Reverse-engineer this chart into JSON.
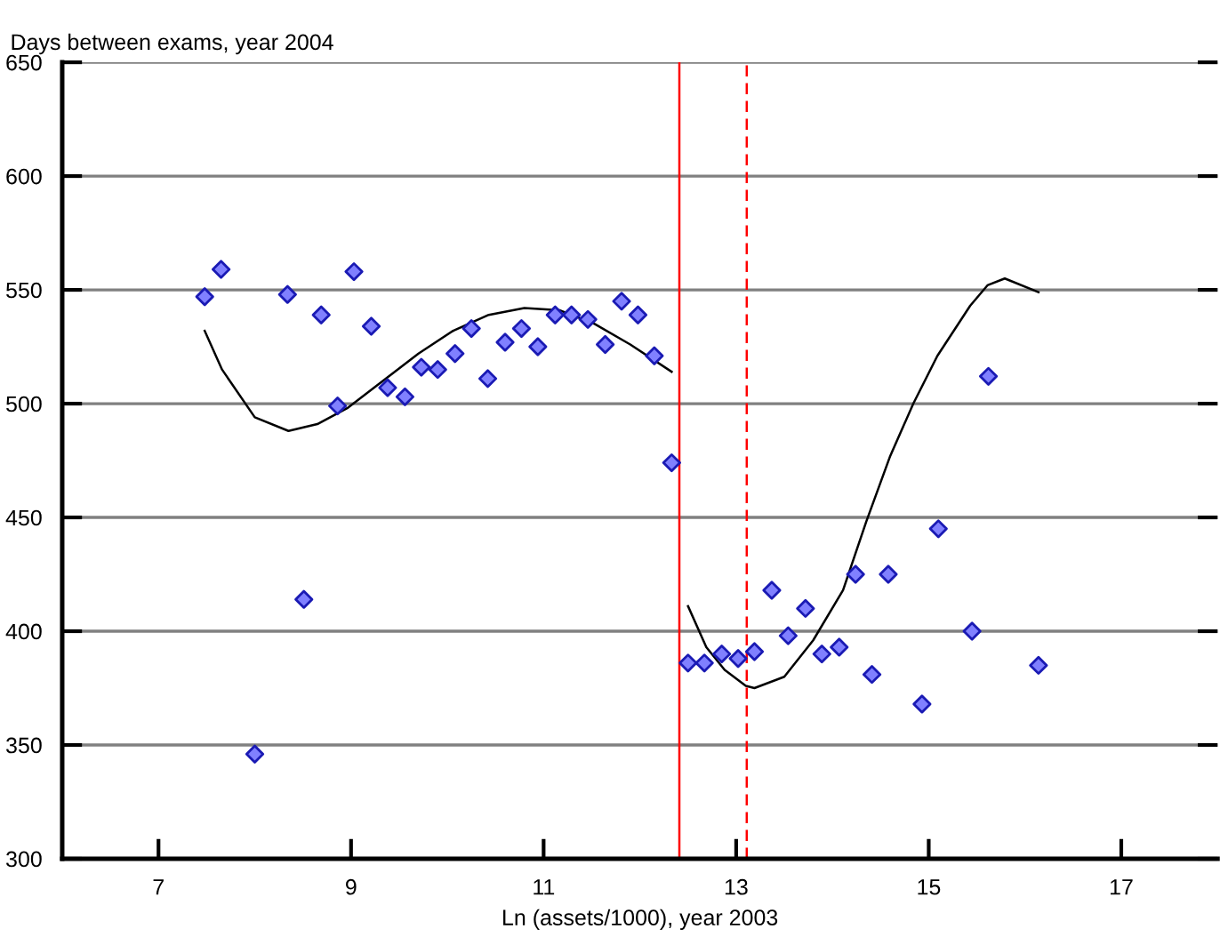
{
  "chart_data": {
    "type": "scatter",
    "ylabel": "Days between exams, year 2004",
    "xlabel": "Ln (assets/1000), year 2003",
    "xlim": [
      6,
      18
    ],
    "xticks": [
      7,
      9,
      11,
      13,
      15,
      17
    ],
    "ylim": [
      300,
      650
    ],
    "yticks": [
      300,
      350,
      400,
      450,
      500,
      550,
      600,
      650
    ],
    "grid": "y",
    "marker": "diamond",
    "series": [
      {
        "color": "#1a1ab4",
        "x": [
          7.48,
          7.65,
          8.34,
          8.69,
          8.86,
          9.03,
          9.21,
          9.38,
          9.56,
          9.73,
          9.9,
          10.08,
          10.25,
          10.42,
          10.6,
          10.77,
          10.94,
          11.12,
          11.29,
          11.46,
          11.64,
          11.81,
          11.98,
          12.15,
          8.0,
          8.51,
          12.33,
          12.5,
          12.67,
          12.85,
          13.02,
          13.19,
          13.37,
          13.54,
          13.72,
          13.89,
          14.07,
          14.24,
          14.41,
          14.58,
          14.93,
          15.1,
          15.45,
          15.62,
          16.14
        ],
        "values": [
          547,
          559,
          548,
          539,
          499,
          558,
          534,
          507,
          503,
          516,
          515,
          522,
          533,
          511,
          527,
          533,
          525,
          539,
          539,
          537,
          526,
          545,
          539,
          521,
          346,
          414,
          474,
          386,
          386,
          390,
          388,
          391,
          418,
          398,
          410,
          390,
          393,
          425,
          381,
          425,
          368,
          445,
          400,
          512,
          385
        ]
      },
      {
        "type": "line",
        "color": "#000000",
        "marker": "none",
        "x": [
          7.48,
          7.66,
          8.0,
          8.35,
          8.65,
          8.96,
          9.33,
          9.7,
          10.06,
          10.43,
          10.8,
          11.17,
          11.53,
          11.9,
          12.33
        ],
        "values": [
          532,
          515,
          494,
          488,
          491,
          498,
          510,
          522,
          532,
          539,
          542,
          541,
          535,
          526,
          514
        ]
      },
      {
        "type": "line",
        "color": "#000000",
        "marker": "none",
        "x": [
          12.5,
          12.69,
          12.88,
          13.1,
          13.19,
          13.5,
          13.8,
          14.11,
          14.35,
          14.6,
          14.84,
          15.09,
          15.43,
          15.61,
          15.79,
          16.14
        ],
        "values": [
          411,
          393,
          383,
          376,
          375,
          380,
          396,
          418,
          448,
          477,
          500,
          521,
          543,
          552,
          555,
          549
        ]
      }
    ],
    "ref_lines": [
      {
        "axis": "x",
        "value": 12.41,
        "color": "#ff0000",
        "line_style": "solid"
      },
      {
        "axis": "x",
        "value": 13.11,
        "color": "#ff0000",
        "line_style": "dashed"
      }
    ]
  }
}
